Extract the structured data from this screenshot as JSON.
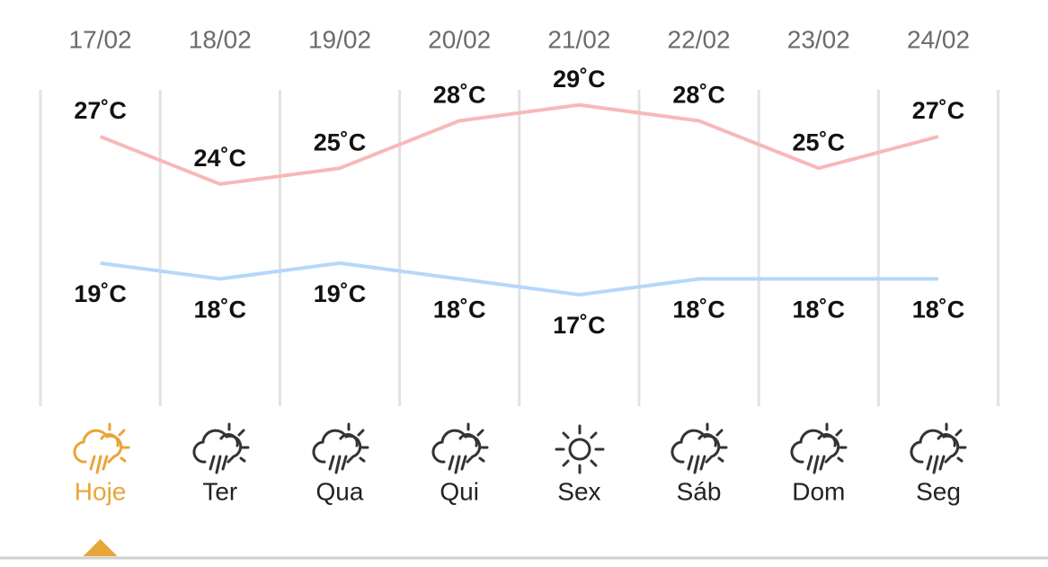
{
  "forecast": {
    "days": [
      {
        "date": "17/02",
        "name": "Hoje",
        "high": {
          "value": 27,
          "label": "27˚C"
        },
        "low": {
          "value": 19,
          "label": "19˚C"
        }
      },
      {
        "date": "18/02",
        "name": "Ter",
        "high": {
          "value": 24,
          "label": "24˚C"
        },
        "low": {
          "value": 18,
          "label": "18˚C"
        }
      },
      {
        "date": "19/02",
        "name": "Qua",
        "high": {
          "value": 25,
          "label": "25˚C"
        },
        "low": {
          "value": 19,
          "label": "19˚C"
        }
      },
      {
        "date": "20/02",
        "name": "Qui",
        "high": {
          "value": 28,
          "label": "28˚C"
        },
        "low": {
          "value": 18,
          "label": "18˚C"
        }
      },
      {
        "date": "21/02",
        "name": "Sex",
        "high": {
          "value": 29,
          "label": "29˚C"
        },
        "low": {
          "value": 17,
          "label": "17˚C"
        }
      },
      {
        "date": "22/02",
        "name": "Sáb",
        "high": {
          "value": 28,
          "label": "28˚C"
        },
        "low": {
          "value": 18,
          "label": "18˚C"
        }
      },
      {
        "date": "23/02",
        "name": "Dom",
        "high": {
          "value": 25,
          "label": "25˚C"
        },
        "low": {
          "value": 18,
          "label": "18˚C"
        }
      },
      {
        "date": "24/02",
        "name": "Seg",
        "high": {
          "value": 27,
          "label": "27˚C"
        },
        "low": {
          "value": 18,
          "label": "18˚C"
        }
      }
    ],
    "high_color": "#f8b8b8",
    "low_color": "#b5d8f8",
    "selected_index": 0,
    "selected_color": "#e8a538"
  }
}
